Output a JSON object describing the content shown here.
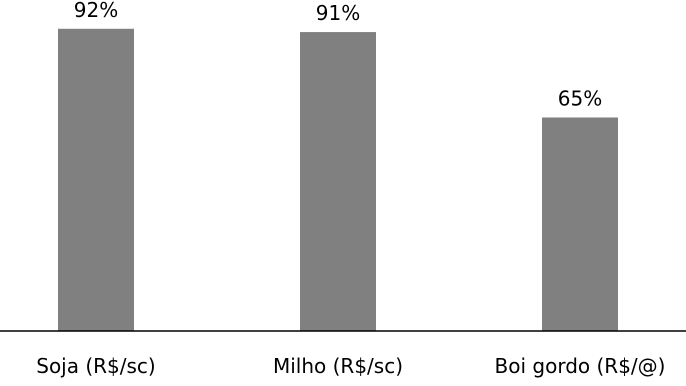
{
  "chart_data": {
    "type": "bar",
    "categories": [
      "Soja (R$/sc)",
      "Milho (R$/sc)",
      "Boi gordo (R$/@)"
    ],
    "values": [
      92,
      91,
      65
    ],
    "data_labels": [
      "92%",
      "91%",
      "65%"
    ],
    "ylim": [
      0,
      100
    ],
    "grid": false,
    "legend": "none",
    "bar_color": "#808080",
    "axis_color": "#000000"
  }
}
